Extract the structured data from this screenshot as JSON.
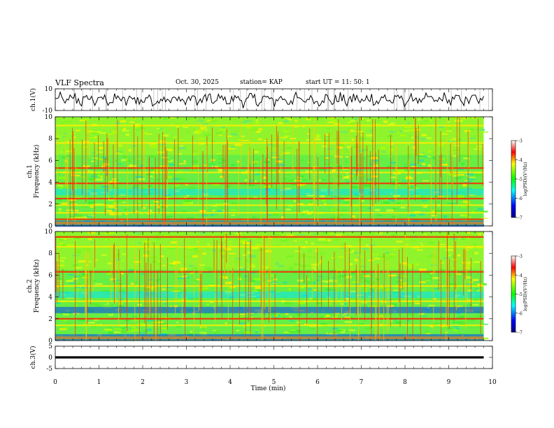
{
  "header": {
    "title": "VLF Spectra",
    "date": "Oct. 30, 2025",
    "station": "station= KAP",
    "start": "start UT =  11: 50: 1"
  },
  "chart_data": [
    {
      "type": "line",
      "panel": "ch1-waveform",
      "ylabel": "ch.1(V)",
      "ylim": [
        -10,
        10
      ],
      "yticks": [
        "10",
        "-10"
      ],
      "xlim": [
        0,
        10
      ],
      "trace_x_end": 9.8,
      "noise_amplitude": 7
    },
    {
      "type": "heatmap",
      "panel": "ch1-spectrogram",
      "ylabel": "ch.1\nFrequency (kHz)",
      "ylim": [
        0,
        10
      ],
      "yticks": [
        "0",
        "2",
        "4",
        "6",
        "8",
        "10"
      ],
      "xlim": [
        0,
        10
      ],
      "data_x_end": 9.8,
      "colorbar": {
        "label": "log(PSD)(V²/Hz)",
        "ticks": [
          "-3",
          "-4",
          "-5",
          "-6",
          "-7"
        ],
        "range": [
          -7,
          -3
        ]
      },
      "bands_khz": [
        {
          "f": 9.2,
          "level": "yellow"
        },
        {
          "f": 7.6,
          "level": "yellow"
        },
        {
          "f": 5.3,
          "level": "red"
        },
        {
          "f": 4.9,
          "level": "yellow"
        },
        {
          "f": 3.9,
          "level": "red"
        },
        {
          "f": 3.1,
          "level": "cyan"
        },
        {
          "f": 2.5,
          "level": "red"
        },
        {
          "f": 1.9,
          "level": "yellow"
        },
        {
          "f": 1.2,
          "level": "yellow"
        },
        {
          "f": 0.6,
          "level": "red"
        },
        {
          "f": 0.2,
          "level": "blue"
        }
      ]
    },
    {
      "type": "heatmap",
      "panel": "ch2-spectrogram",
      "ylabel": "ch.2\nFrequency (kHz)",
      "ylim": [
        0,
        10
      ],
      "yticks": [
        "0",
        "2",
        "4",
        "6",
        "8",
        "10"
      ],
      "xlim": [
        0,
        10
      ],
      "data_x_end": 9.8,
      "colorbar": {
        "label": "log(PSD)(V²/Hz)",
        "ticks": [
          "-3",
          "-4",
          "-5",
          "-6",
          "-7"
        ],
        "range": [
          -7,
          -3
        ]
      },
      "bands_khz": [
        {
          "f": 9.5,
          "level": "red"
        },
        {
          "f": 8.6,
          "level": "yellow"
        },
        {
          "f": 6.3,
          "level": "red"
        },
        {
          "f": 5.0,
          "level": "yellow"
        },
        {
          "f": 4.2,
          "level": "cyan"
        },
        {
          "f": 3.6,
          "level": "yellow"
        },
        {
          "f": 2.8,
          "level": "blue"
        },
        {
          "f": 2.0,
          "level": "red"
        },
        {
          "f": 1.4,
          "level": "yellow"
        },
        {
          "f": 0.3,
          "level": "blue"
        }
      ]
    },
    {
      "type": "line",
      "panel": "ch3-waveform",
      "ylabel": "ch.3(V)",
      "ylim": [
        -5,
        5
      ],
      "yticks": [
        "5",
        "0",
        "-5"
      ],
      "xlim": [
        0,
        10
      ],
      "xlabel": "Time (min)",
      "xticks": [
        "0",
        "1",
        "2",
        "3",
        "4",
        "5",
        "6",
        "7",
        "8",
        "9",
        "10"
      ],
      "trace_x_end": 9.8,
      "trace_level": 0,
      "trace_band": [
        -0.5,
        0.5
      ]
    }
  ]
}
